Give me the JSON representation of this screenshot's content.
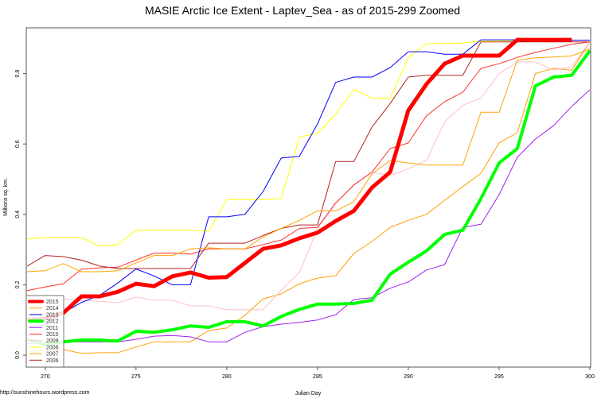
{
  "chart_data": {
    "type": "line",
    "title": "MASIE Arctic Ice Extent - Laptev_Sea - as of 2015-299 Zoomed",
    "xlabel": "Julian Day",
    "ylabel": "Millions sq. km.",
    "footer": "http://sunshinehours.wordpress.com",
    "xlim": [
      269,
      300
    ],
    "ylim": [
      -0.03,
      0.93
    ],
    "xticks": [
      "270",
      "275",
      "280",
      "285",
      "290",
      "295",
      "300"
    ],
    "yticks": [
      "0.0",
      "0.2",
      "0.4",
      "0.6",
      "0.8"
    ],
    "grid": false,
    "legend_position": "bottom-left",
    "x_start": 269,
    "series": [
      {
        "name": "2015",
        "color": "#FF0000",
        "width": 5,
        "values": [
          0.1,
          0.104,
          0.12,
          0.167,
          0.167,
          0.18,
          0.203,
          0.196,
          0.224,
          0.235,
          0.22,
          0.222,
          0.262,
          0.302,
          0.312,
          0.332,
          0.348,
          0.381,
          0.41,
          0.476,
          0.52,
          0.695,
          0.77,
          0.828,
          0.851,
          0.851,
          0.851,
          0.896,
          0.896,
          0.896,
          0.896
        ]
      },
      {
        "name": "2014",
        "color": "#FFA500",
        "width": 1,
        "values": [
          0.237,
          0.24,
          0.26,
          0.237,
          0.237,
          0.24,
          0.262,
          0.283,
          0.283,
          0.302,
          0.305,
          0.302,
          0.302,
          0.336,
          0.36,
          0.383,
          0.41,
          0.41,
          0.436,
          0.515,
          0.553,
          0.546,
          0.54,
          0.54,
          0.54,
          0.69,
          0.69,
          0.838,
          0.845,
          0.847,
          0.85,
          0.87
        ]
      },
      {
        "name": "2013",
        "color": "#0000FF",
        "width": 1,
        "values": [
          0.08,
          0.086,
          0.12,
          0.15,
          0.17,
          0.205,
          0.245,
          0.225,
          0.2,
          0.2,
          0.393,
          0.393,
          0.4,
          0.465,
          0.56,
          0.565,
          0.657,
          0.775,
          0.79,
          0.79,
          0.817,
          0.862,
          0.862,
          0.855,
          0.855,
          0.896,
          0.896,
          0.896,
          0.895,
          0.895,
          0.895,
          0.895
        ]
      },
      {
        "name": "2012",
        "color": "#00FF00",
        "width": 4,
        "values": [
          0.045,
          0.03,
          0.038,
          0.043,
          0.043,
          0.04,
          0.068,
          0.065,
          0.072,
          0.083,
          0.079,
          0.095,
          0.095,
          0.083,
          0.11,
          0.13,
          0.145,
          0.145,
          0.147,
          0.156,
          0.23,
          0.264,
          0.296,
          0.343,
          0.355,
          0.445,
          0.546,
          0.587,
          0.765,
          0.79,
          0.795,
          0.865
        ]
      },
      {
        "name": "2011",
        "color": "#A020F0",
        "width": 1,
        "values": [
          0.032,
          0.036,
          0.038,
          0.038,
          0.038,
          0.038,
          0.045,
          0.054,
          0.056,
          0.052,
          0.038,
          0.038,
          0.065,
          0.081,
          0.088,
          0.093,
          0.1,
          0.115,
          0.158,
          0.163,
          0.19,
          0.208,
          0.242,
          0.257,
          0.363,
          0.372,
          0.456,
          0.562,
          0.614,
          0.652,
          0.707,
          0.754
        ]
      },
      {
        "name": "2010",
        "color": "#FF3030",
        "width": 1,
        "values": [
          0.183,
          0.194,
          0.203,
          0.244,
          0.248,
          0.25,
          0.27,
          0.29,
          0.29,
          0.287,
          0.302,
          0.302,
          0.302,
          0.314,
          0.327,
          0.36,
          0.363,
          0.433,
          0.483,
          0.52,
          0.587,
          0.603,
          0.68,
          0.72,
          0.747,
          0.815,
          0.828,
          0.846,
          0.86,
          0.872,
          0.883,
          0.89
        ]
      },
      {
        "name": "2009",
        "color": "#FFC0CB",
        "width": 1,
        "values": [
          0.16,
          0.158,
          0.16,
          0.156,
          0.153,
          0.149,
          0.165,
          0.156,
          0.156,
          0.14,
          0.14,
          0.129,
          0.129,
          0.129,
          0.185,
          0.235,
          0.36,
          0.43,
          0.485,
          0.52,
          0.51,
          0.53,
          0.553,
          0.663,
          0.71,
          0.73,
          0.8,
          0.833,
          0.833,
          0.81,
          0.82,
          0.89
        ]
      },
      {
        "name": "2008",
        "color": "#FFFF00",
        "width": 1,
        "values": [
          0.33,
          0.334,
          0.334,
          0.334,
          0.31,
          0.314,
          0.355,
          0.355,
          0.355,
          0.355,
          0.352,
          0.442,
          0.442,
          0.442,
          0.445,
          0.62,
          0.63,
          0.685,
          0.755,
          0.73,
          0.73,
          0.845,
          0.885,
          0.885,
          0.887,
          0.892,
          0.892,
          0.895,
          0.895,
          0.895,
          0.895,
          0.895
        ]
      },
      {
        "name": "2007",
        "color": "#FFA000",
        "width": 1,
        "values": [
          0.01,
          0.013,
          0.016,
          0.005,
          0.007,
          0.007,
          0.023,
          0.038,
          0.038,
          0.038,
          0.07,
          0.077,
          0.113,
          0.16,
          0.174,
          0.203,
          0.219,
          0.226,
          0.289,
          0.323,
          0.363,
          0.383,
          0.4,
          0.44,
          0.479,
          0.517,
          0.603,
          0.632,
          0.8,
          0.815,
          0.81,
          0.89
        ]
      },
      {
        "name": "2006",
        "color": "#B22222",
        "width": 1,
        "values": [
          0.253,
          0.283,
          0.28,
          0.27,
          0.253,
          0.246,
          0.246,
          0.246,
          0.246,
          0.246,
          0.318,
          0.318,
          0.318,
          0.34,
          0.36,
          0.37,
          0.37,
          0.55,
          0.55,
          0.648,
          0.715,
          0.79,
          0.795,
          0.795,
          0.795,
          0.89,
          0.89,
          0.89,
          0.89,
          0.89,
          0.89,
          0.89
        ]
      }
    ]
  }
}
